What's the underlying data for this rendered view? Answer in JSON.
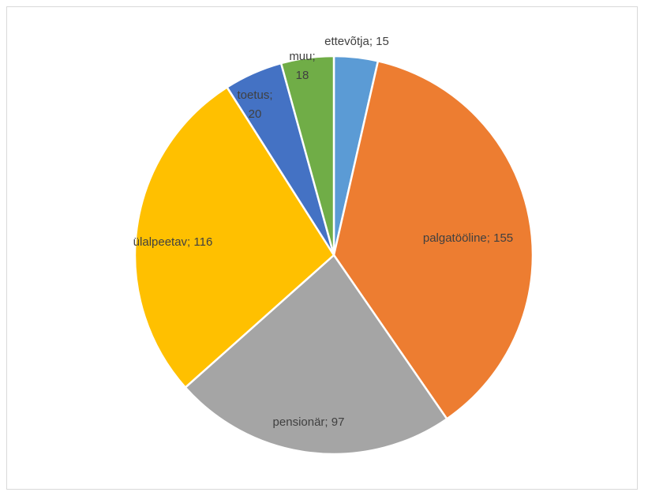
{
  "chart_data": {
    "type": "pie",
    "title": "",
    "slices": [
      {
        "name": "ettevõtja",
        "value": 15,
        "color": "#5B9BD5",
        "label": "ettevõtja; 15"
      },
      {
        "name": "palgatööline",
        "value": 155,
        "color": "#ED7D31",
        "label": "palgatööline; 155"
      },
      {
        "name": "pensionär",
        "value": 97,
        "color": "#A5A5A5",
        "label": "pensionär; 97"
      },
      {
        "name": "ülalpeetav",
        "value": 116,
        "color": "#FFC000",
        "label": "ülalpeetav; 116"
      },
      {
        "name": "toetus",
        "value": 20,
        "color": "#4472C4",
        "label_lines": [
          "toetus;",
          "20"
        ]
      },
      {
        "name": "muu",
        "value": 18,
        "color": "#70AD47",
        "label_lines": [
          "muu;",
          "18"
        ]
      }
    ],
    "start_angle": "12 o'clock",
    "direction": "clockwise",
    "legend": "none"
  }
}
